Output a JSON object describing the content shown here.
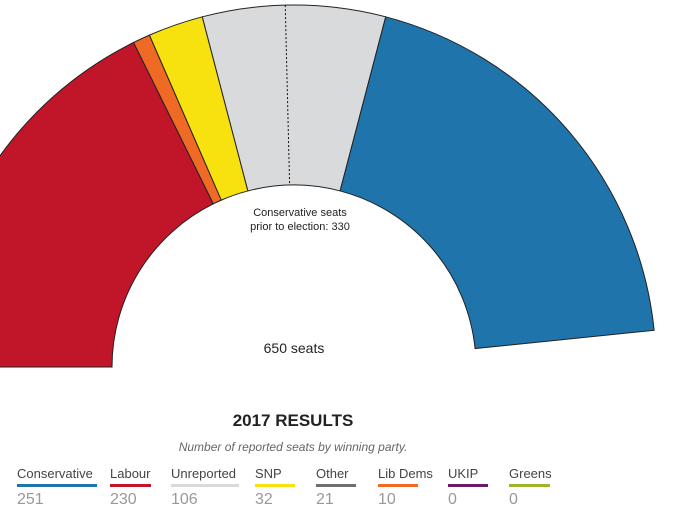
{
  "chart_data": {
    "type": "pie",
    "title": "2017 RESULTS",
    "subtitle": "Number of reported seats by winning party.",
    "total_label": "650 seats",
    "annotation": [
      "Conservative seats",
      "prior to election: 330"
    ],
    "annotation_value": 330,
    "total": 650,
    "series": [
      {
        "name": "Conservative",
        "value": 251,
        "color": "#1f74ab"
      },
      {
        "name": "Labour",
        "value": 230,
        "color": "#c1152a"
      },
      {
        "name": "Unreported",
        "value": 106,
        "color": "#d9dadb"
      },
      {
        "name": "SNP",
        "value": 32,
        "color": "#f7e20f"
      },
      {
        "name": "Other",
        "value": 21,
        "color": "#6f6f6f"
      },
      {
        "name": "Lib Dems",
        "value": 10,
        "color": "#ef6a25"
      },
      {
        "name": "UKIP",
        "value": 0,
        "color": "#6b1a6b"
      },
      {
        "name": "Greens",
        "value": 0,
        "color": "#9db52c"
      }
    ],
    "arc_order": [
      "Labour",
      "Lib Dems",
      "SNP",
      "Unreported",
      "Conservative"
    ]
  }
}
